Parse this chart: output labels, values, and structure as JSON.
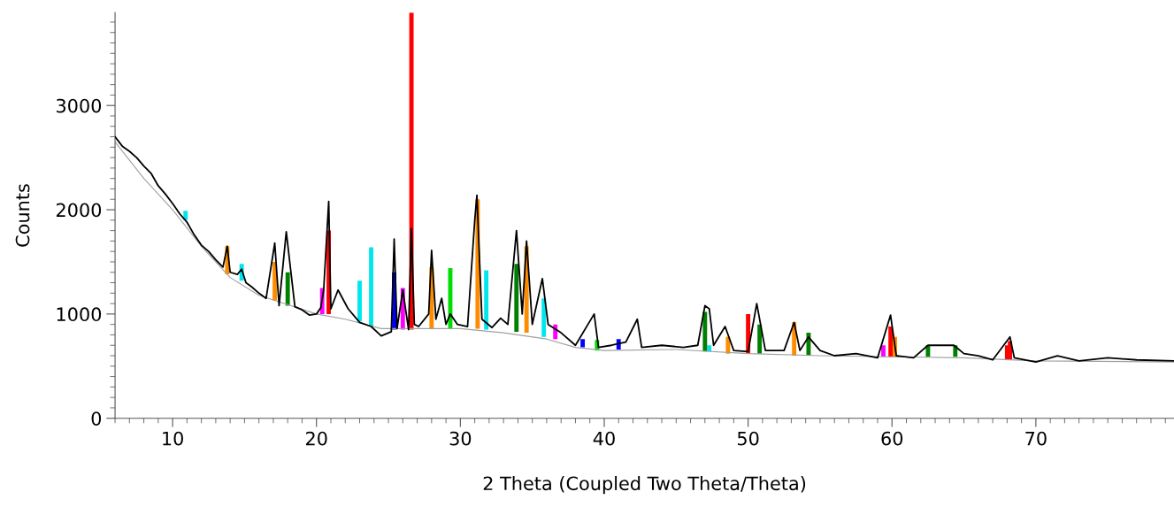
{
  "chart_data": {
    "type": "line",
    "xlabel": "2 Theta (Coupled Two Theta/Theta)",
    "ylabel": "Counts",
    "xlim": [
      6,
      79.6
    ],
    "ylim": [
      0,
      3890
    ],
    "xticks": [
      10,
      20,
      30,
      40,
      50,
      60,
      70
    ],
    "yticks": [
      0,
      1000,
      2000,
      3000
    ],
    "grid": false,
    "legend": false,
    "marker": "none",
    "line_style": "solid",
    "series": [
      {
        "color": "#a0a0a0",
        "x": [
          6,
          8,
          10,
          12,
          14,
          16,
          18,
          20,
          22,
          24.5,
          27,
          30,
          33,
          36,
          38,
          40,
          45,
          50,
          55,
          60,
          65,
          70,
          79.6
        ],
        "values": [
          2650,
          2300,
          2000,
          1650,
          1350,
          1180,
          1090,
          1000,
          950,
          860,
          860,
          860,
          820,
          760,
          680,
          650,
          660,
          620,
          600,
          590,
          580,
          550,
          540
        ]
      },
      {
        "type": "bar",
        "color": "#ff0000",
        "x": [
          20.85,
          26.6,
          50.0,
          59.9,
          68.0,
          68.2
        ],
        "base": [
          1000,
          850,
          620,
          590,
          560,
          560
        ],
        "values": [
          800,
          3040,
          380,
          290,
          140,
          180
        ]
      },
      {
        "type": "bar",
        "color": "#ff8c00",
        "x": [
          13.8,
          17.1,
          28.0,
          31.2,
          34.6,
          48.6,
          53.2,
          60.2
        ],
        "base": [
          1380,
          1130,
          860,
          860,
          820,
          620,
          600,
          590
        ],
        "values": [
          270,
          370,
          590,
          1240,
          830,
          160,
          320,
          190
        ]
      },
      {
        "type": "bar",
        "color": "#00e5ee",
        "x": [
          10.9,
          14.8,
          23.0,
          23.8,
          31.8,
          35.8,
          47.3
        ],
        "base": [
          1900,
          1320,
          930,
          880,
          850,
          780,
          640
        ],
        "values": [
          90,
          160,
          390,
          760,
          570,
          370,
          60
        ]
      },
      {
        "type": "bar",
        "color": "#00dd00",
        "x": [
          29.3,
          39.5
        ],
        "base": [
          860,
          650
        ],
        "values": [
          580,
          100
        ]
      },
      {
        "type": "bar",
        "color": "#008000",
        "x": [
          18.0,
          33.9,
          47.0,
          50.8,
          54.2,
          62.5,
          64.4
        ],
        "base": [
          1080,
          830,
          640,
          620,
          600,
          590,
          590
        ],
        "values": [
          320,
          650,
          380,
          280,
          220,
          110,
          110
        ]
      },
      {
        "type": "bar",
        "color": "#ff00ff",
        "x": [
          20.4,
          26.0,
          36.6,
          59.4
        ],
        "base": [
          1000,
          850,
          760,
          590
        ],
        "values": [
          250,
          400,
          140,
          110
        ]
      },
      {
        "type": "bar",
        "color": "#0000ff",
        "x": [
          25.4,
          38.5,
          41.0
        ],
        "base": [
          850,
          680,
          660
        ],
        "values": [
          550,
          80,
          100
        ]
      },
      {
        "color": "#000000",
        "x": [
          6.0,
          6.5,
          7,
          7.5,
          8,
          8.5,
          9,
          9.5,
          10,
          10.5,
          11,
          11.5,
          12,
          12.5,
          13,
          13.5,
          13.8,
          14,
          14.5,
          14.8,
          15.1,
          15.5,
          16,
          16.5,
          17.1,
          17.4,
          17.9,
          18.5,
          19,
          19.5,
          20,
          20.3,
          20.5,
          20.85,
          21.0,
          21.5,
          22.2,
          23,
          23.8,
          24.5,
          25.2,
          25.4,
          25.6,
          26.0,
          26.4,
          26.6,
          26.8,
          27.1,
          27.8,
          28.0,
          28.3,
          28.7,
          29.0,
          29.3,
          29.8,
          30.5,
          31.0,
          31.15,
          31.5,
          32.2,
          32.8,
          33.3,
          33.9,
          34.3,
          34.6,
          35.0,
          35.7,
          36.1,
          37,
          38,
          39.3,
          39.6,
          40.5,
          41.5,
          42.3,
          42.6,
          44,
          45.5,
          46.5,
          47,
          47.3,
          47.6,
          48.4,
          49,
          50,
          50.6,
          51.2,
          52.5,
          53.2,
          53.6,
          54.2,
          55,
          56,
          57.5,
          59,
          59.9,
          60.3,
          61.5,
          62.5,
          63.5,
          64.3,
          65,
          66,
          67,
          68.2,
          68.5,
          70,
          71.5,
          73,
          75,
          77,
          79.6
        ],
        "values": [
          2700,
          2610,
          2560,
          2500,
          2420,
          2350,
          2230,
          2150,
          2060,
          1960,
          1880,
          1760,
          1660,
          1600,
          1520,
          1450,
          1650,
          1400,
          1380,
          1430,
          1300,
          1260,
          1200,
          1150,
          1680,
          1080,
          1790,
          1070,
          1040,
          990,
          1000,
          1060,
          1230,
          2080,
          1050,
          1230,
          1050,
          920,
          880,
          790,
          830,
          1720,
          860,
          1230,
          850,
          1820,
          900,
          880,
          1000,
          1610,
          950,
          1150,
          900,
          1000,
          900,
          880,
          1900,
          2140,
          950,
          870,
          960,
          900,
          1800,
          1000,
          1700,
          900,
          1340,
          900,
          820,
          700,
          1000,
          680,
          700,
          730,
          950,
          680,
          700,
          680,
          700,
          1080,
          1050,
          700,
          880,
          650,
          640,
          1100,
          650,
          650,
          920,
          650,
          780,
          650,
          600,
          620,
          580,
          990,
          600,
          580,
          700,
          700,
          700,
          620,
          600,
          560,
          780,
          580,
          540,
          600,
          550,
          580,
          560,
          550
        ]
      }
    ]
  }
}
